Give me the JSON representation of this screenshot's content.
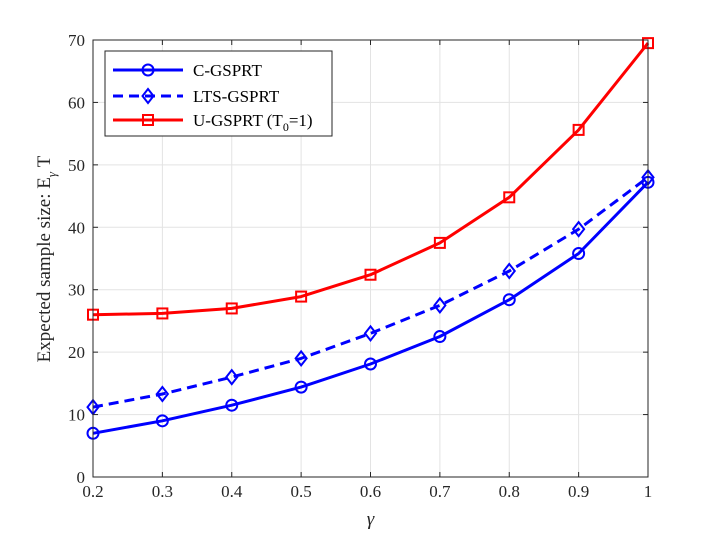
{
  "chart_data": {
    "type": "line",
    "title": "",
    "xlabel": "γ",
    "ylabel": {
      "main": "Expected sample size: E",
      "sub": "γ",
      "tail": " T"
    },
    "x": [
      0.2,
      0.3,
      0.4,
      0.5,
      0.6,
      0.7,
      0.8,
      0.9,
      1.0
    ],
    "xlim": [
      0.2,
      1.0
    ],
    "ylim": [
      0,
      70
    ],
    "xticks": [
      "0.2",
      "0.3",
      "0.4",
      "0.5",
      "0.6",
      "0.7",
      "0.8",
      "0.9",
      "1"
    ],
    "yticks": [
      "0",
      "10",
      "20",
      "30",
      "40",
      "50",
      "60",
      "70"
    ],
    "grid": true,
    "legend_position": "top-left",
    "series": [
      {
        "name": "C-GSPRT",
        "color": "#0000ff",
        "marker": "circle",
        "line_style": "solid",
        "values": [
          7.0,
          9.0,
          11.5,
          14.4,
          18.1,
          22.5,
          28.4,
          35.8,
          47.2
        ]
      },
      {
        "name": "LTS-GSPRT",
        "color": "#0000ff",
        "marker": "diamond",
        "line_style": "dashed",
        "values": [
          11.2,
          13.3,
          16.0,
          19.0,
          23.0,
          27.5,
          33.0,
          39.7,
          48.0
        ]
      },
      {
        "name": {
          "main": "U-GSPRT (T",
          "sub": "0",
          "tail": "=1)"
        },
        "color": "#ff0000",
        "marker": "square",
        "line_style": "solid",
        "values": [
          26.0,
          26.2,
          27.0,
          28.9,
          32.4,
          37.5,
          44.8,
          55.6,
          69.5
        ]
      }
    ]
  }
}
